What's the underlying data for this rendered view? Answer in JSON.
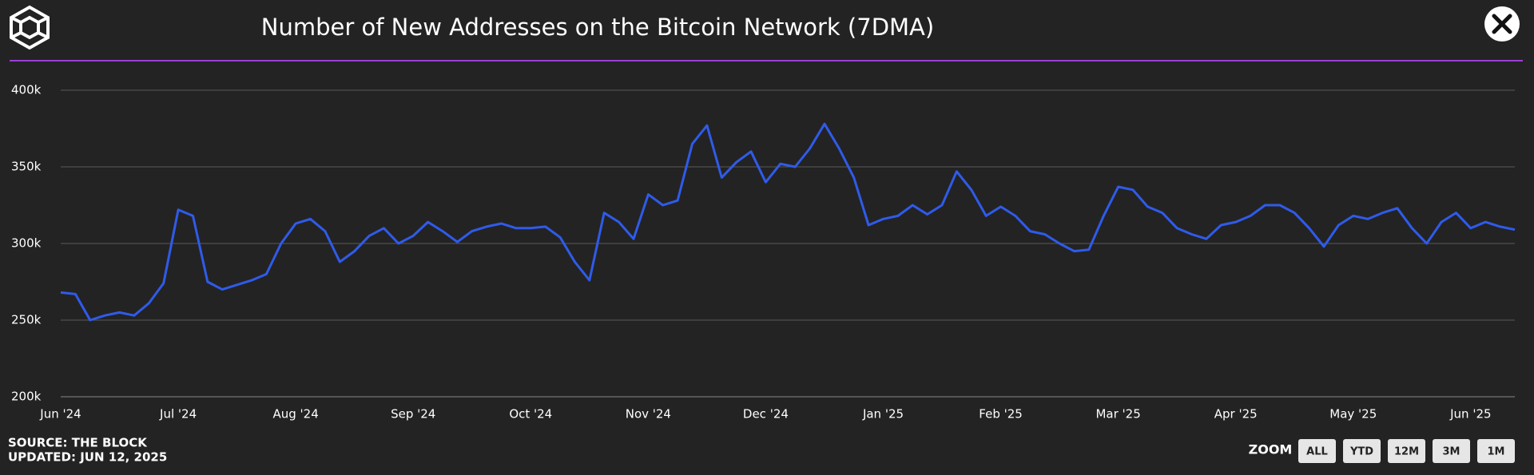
{
  "chart_data": {
    "type": "line",
    "title": "Number of New Addresses on the Bitcoin Network (7DMA)",
    "categories": [
      "Jun '24",
      null,
      null,
      null,
      null,
      null,
      null,
      null,
      "Jul '24",
      null,
      null,
      null,
      null,
      null,
      null,
      null,
      "Aug '24",
      null,
      null,
      null,
      null,
      null,
      null,
      null,
      "Sep '24",
      null,
      null,
      null,
      null,
      null,
      null,
      null,
      "Oct '24",
      null,
      null,
      null,
      null,
      null,
      null,
      null,
      "Nov '24",
      null,
      null,
      null,
      null,
      null,
      null,
      null,
      "Dec '24",
      null,
      null,
      null,
      null,
      null,
      null,
      null,
      "Jan '25",
      null,
      null,
      null,
      null,
      null,
      null,
      null,
      "Feb '25",
      null,
      null,
      null,
      null,
      null,
      null,
      null,
      "Mar '25",
      null,
      null,
      null,
      null,
      null,
      null,
      null,
      "Apr '25",
      null,
      null,
      null,
      null,
      null,
      null,
      null,
      "May '25",
      null,
      null,
      null,
      null,
      null,
      null,
      null,
      "Jun '25",
      null,
      null,
      null
    ],
    "values": [
      268000,
      267000,
      250000,
      253000,
      255000,
      253000,
      261000,
      274000,
      322000,
      318000,
      275000,
      270000,
      273000,
      276000,
      280000,
      300000,
      313000,
      316000,
      308000,
      288000,
      295000,
      305000,
      310000,
      300000,
      305000,
      314000,
      308000,
      301000,
      308000,
      311000,
      313000,
      310000,
      310000,
      311000,
      304000,
      288000,
      276000,
      320000,
      314000,
      303000,
      332000,
      325000,
      328000,
      365000,
      377000,
      343000,
      353000,
      360000,
      340000,
      352000,
      350000,
      362000,
      378000,
      362000,
      343000,
      312000,
      316000,
      318000,
      325000,
      319000,
      325000,
      347000,
      335000,
      318000,
      324000,
      318000,
      308000,
      306000,
      300000,
      295000,
      296000,
      318000,
      337000,
      335000,
      324000,
      320000,
      310000,
      306000,
      303000,
      312000,
      314000,
      318000,
      325000,
      325000,
      320000,
      310000,
      298000,
      312000,
      318000,
      316000,
      320000,
      323000,
      310000,
      300000,
      314000,
      320000,
      310000,
      314000,
      311000,
      309000
    ],
    "color": "#2f5bea",
    "ylim": [
      200000,
      400000
    ],
    "yticks": [
      {
        "value": 200000,
        "label": "200k"
      },
      {
        "value": 250000,
        "label": "250k"
      },
      {
        "value": 300000,
        "label": "300k"
      },
      {
        "value": 350000,
        "label": "350k"
      },
      {
        "value": 400000,
        "label": "400k"
      }
    ],
    "grid": true
  },
  "source": "SOURCE: THE BLOCK",
  "updated": "UPDATED: JUN 12, 2025",
  "zoom": {
    "label": "ZOOM",
    "buttons": [
      "ALL",
      "YTD",
      "12M",
      "3M",
      "1M"
    ]
  }
}
